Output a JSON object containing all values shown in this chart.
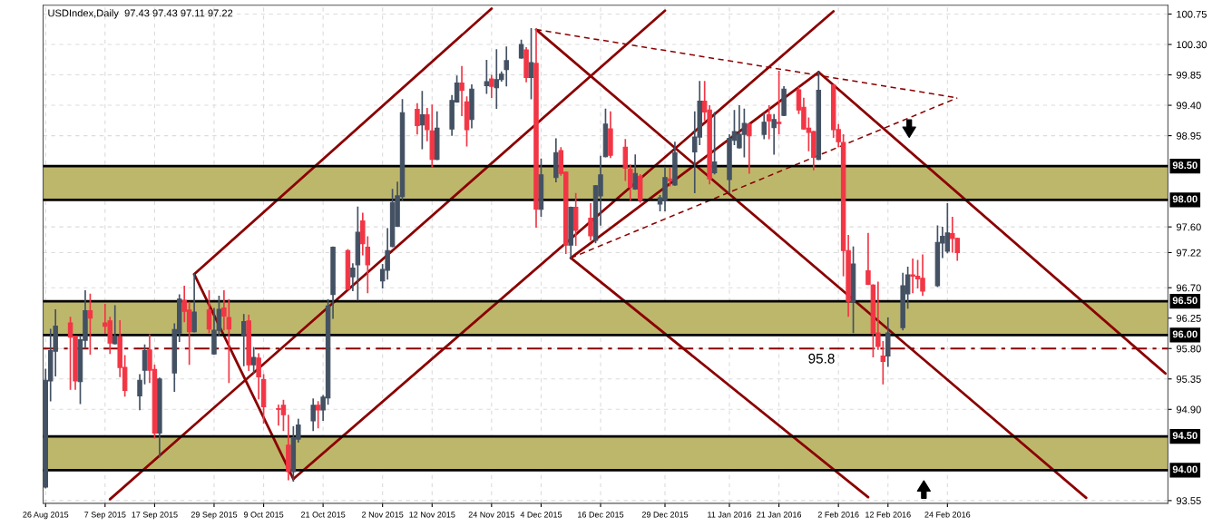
{
  "chart_data": {
    "type": "candlestick",
    "title": "USDIndex,Daily  97.43 97.43 97.11 97.22",
    "x": [
      "2015-08-26",
      "2015-08-27",
      "2015-08-28",
      "2015-08-31",
      "2015-09-01",
      "2015-09-02",
      "2015-09-03",
      "2015-09-04",
      "2015-09-07",
      "2015-09-08",
      "2015-09-09",
      "2015-09-10",
      "2015-09-11",
      "2015-09-14",
      "2015-09-15",
      "2015-09-16",
      "2015-09-17",
      "2015-09-18",
      "2015-09-21",
      "2015-09-22",
      "2015-09-23",
      "2015-09-24",
      "2015-09-25",
      "2015-09-28",
      "2015-09-29",
      "2015-09-30",
      "2015-10-01",
      "2015-10-02",
      "2015-10-05",
      "2015-10-06",
      "2015-10-07",
      "2015-10-08",
      "2015-10-09",
      "2015-10-12",
      "2015-10-13",
      "2015-10-14",
      "2015-10-15",
      "2015-10-16",
      "2015-10-19",
      "2015-10-20",
      "2015-10-21",
      "2015-10-22",
      "2015-10-23",
      "2015-10-26",
      "2015-10-27",
      "2015-10-28",
      "2015-10-29",
      "2015-10-30",
      "2015-11-02",
      "2015-11-03",
      "2015-11-04",
      "2015-11-05",
      "2015-11-06",
      "2015-11-09",
      "2015-11-10",
      "2015-11-11",
      "2015-11-12",
      "2015-11-13",
      "2015-11-16",
      "2015-11-17",
      "2015-11-18",
      "2015-11-19",
      "2015-11-20",
      "2015-11-23",
      "2015-11-24",
      "2015-11-25",
      "2015-11-26",
      "2015-11-27",
      "2015-11-30",
      "2015-12-01",
      "2015-12-02",
      "2015-12-03",
      "2015-12-04",
      "2015-12-07",
      "2015-12-08",
      "2015-12-09",
      "2015-12-10",
      "2015-12-11",
      "2015-12-14",
      "2015-12-15",
      "2015-12-16",
      "2015-12-17",
      "2015-12-18",
      "2015-12-21",
      "2015-12-22",
      "2015-12-23",
      "2015-12-24",
      "2015-12-28",
      "2015-12-29",
      "2015-12-30",
      "2015-12-31",
      "2016-01-04",
      "2016-01-05",
      "2016-01-06",
      "2016-01-07",
      "2016-01-08",
      "2016-01-11",
      "2016-01-12",
      "2016-01-13",
      "2016-01-14",
      "2016-01-15",
      "2016-01-18",
      "2016-01-19",
      "2016-01-20",
      "2016-01-21",
      "2016-01-22",
      "2016-01-25",
      "2016-01-26",
      "2016-01-27",
      "2016-01-28",
      "2016-01-29",
      "2016-02-01",
      "2016-02-02",
      "2016-02-03",
      "2016-02-04",
      "2016-02-05",
      "2016-02-08",
      "2016-02-09",
      "2016-02-10",
      "2016-02-11",
      "2016-02-12",
      "2016-02-15",
      "2016-02-16",
      "2016-02-17",
      "2016-02-18",
      "2016-02-19",
      "2016-02-22",
      "2016-02-23",
      "2016-02-24",
      "2016-02-25",
      "2016-02-26"
    ],
    "ohlc": [
      [
        93.75,
        95.49,
        93.74,
        95.33
      ],
      [
        95.32,
        96.08,
        95.03,
        95.77
      ],
      [
        95.76,
        96.37,
        95.4,
        96.13
      ],
      [
        96.18,
        96.26,
        95.2,
        95.97
      ],
      [
        95.98,
        95.98,
        95.2,
        95.32
      ],
      [
        95.31,
        95.98,
        94.99,
        95.93
      ],
      [
        95.92,
        96.65,
        95.81,
        96.36
      ],
      [
        96.36,
        96.6,
        95.72,
        96.25
      ],
      [
        96.18,
        96.45,
        96.03,
        96.13
      ],
      [
        96.21,
        96.26,
        95.73,
        95.88
      ],
      [
        95.87,
        96.43,
        95.87,
        95.97
      ],
      [
        95.97,
        96.21,
        95.39,
        95.52
      ],
      [
        95.52,
        95.69,
        95.1,
        95.18
      ],
      [
        95.1,
        95.41,
        94.9,
        95.33
      ],
      [
        95.48,
        95.85,
        95.28,
        95.77
      ],
      [
        95.78,
        96.0,
        95.3,
        95.48
      ],
      [
        95.49,
        95.55,
        94.48,
        94.55
      ],
      [
        94.55,
        95.36,
        94.2,
        95.35
      ],
      [
        95.44,
        96.16,
        95.17,
        96.08
      ],
      [
        96.03,
        96.59,
        95.91,
        96.53
      ],
      [
        96.51,
        96.72,
        96.2,
        96.35
      ],
      [
        96.37,
        96.48,
        95.57,
        96.05
      ],
      [
        96.05,
        96.9,
        96.05,
        96.34
      ],
      [
        96.37,
        96.65,
        96.04,
        96.09
      ],
      [
        95.72,
        96.39,
        95.72,
        96.07
      ],
      [
        96.07,
        96.57,
        95.99,
        96.38
      ],
      [
        96.4,
        96.65,
        96.08,
        96.28
      ],
      [
        96.26,
        96.52,
        95.3,
        96.09
      ],
      [
        96.0,
        96.3,
        95.55,
        96.2
      ],
      [
        96.21,
        96.29,
        95.48,
        95.56
      ],
      [
        95.56,
        95.81,
        95.44,
        95.67
      ],
      [
        95.66,
        95.72,
        95.06,
        95.38
      ],
      [
        95.34,
        95.41,
        94.7,
        94.94
      ],
      [
        94.91,
        94.96,
        94.67,
        94.9
      ],
      [
        94.96,
        95.03,
        94.59,
        94.82
      ],
      [
        94.37,
        94.81,
        93.86,
        93.98
      ],
      [
        93.98,
        94.64,
        93.84,
        94.47
      ],
      [
        94.46,
        94.75,
        94.42,
        94.67
      ],
      [
        94.73,
        95.05,
        94.59,
        94.96
      ],
      [
        94.96,
        95.01,
        94.63,
        94.89
      ],
      [
        94.89,
        95.1,
        94.74,
        95.08
      ],
      [
        95.07,
        96.52,
        94.98,
        96.43
      ],
      [
        96.6,
        97.3,
        96.25,
        97.3
      ],
      [
        97.25,
        97.26,
        96.68,
        96.68
      ],
      [
        96.86,
        97.05,
        96.66,
        96.99
      ],
      [
        97.04,
        97.89,
        96.52,
        97.52
      ],
      [
        97.69,
        97.8,
        97.19,
        97.35
      ],
      [
        97.3,
        97.45,
        96.63,
        97.04
      ],
      [
        96.8,
        97.04,
        96.7,
        96.97
      ],
      [
        96.96,
        97.57,
        96.83,
        97.25
      ],
      [
        97.31,
        98.15,
        97.31,
        97.96
      ],
      [
        97.61,
        98.26,
        97.61,
        98.06
      ],
      [
        98.05,
        99.48,
        98.0,
        99.29
      ],
      [
        99.34,
        99.42,
        98.98,
        99.1
      ],
      [
        99.11,
        99.6,
        98.76,
        99.26
      ],
      [
        99.26,
        99.35,
        98.88,
        99.04
      ],
      [
        99.02,
        99.4,
        98.49,
        98.6
      ],
      [
        98.6,
        99.3,
        98.6,
        99.06
      ],
      [
        99.05,
        99.54,
        98.96,
        99.47
      ],
      [
        99.45,
        99.83,
        99.45,
        99.73
      ],
      [
        99.73,
        99.97,
        99.25,
        99.62
      ],
      [
        99.45,
        99.52,
        98.8,
        99.04
      ],
      [
        99.19,
        99.7,
        99.07,
        99.64
      ],
      [
        99.69,
        100.06,
        99.58,
        99.75
      ],
      [
        99.79,
        99.84,
        99.52,
        99.68
      ],
      [
        99.66,
        100.22,
        99.36,
        99.78
      ],
      [
        99.78,
        99.89,
        99.76,
        99.86
      ],
      [
        99.93,
        100.26,
        99.69,
        100.06
      ],
      [
        100.1,
        100.36,
        100.1,
        100.3
      ],
      [
        100.22,
        100.25,
        99.75,
        99.81
      ],
      [
        99.81,
        100.53,
        99.5,
        100.03
      ],
      [
        100.02,
        100.52,
        97.6,
        97.86
      ],
      [
        97.86,
        98.6,
        97.76,
        98.37
      ],
      [
        98.33,
        98.9,
        98.27,
        98.7
      ],
      [
        98.73,
        98.77,
        98.37,
        98.39
      ],
      [
        98.41,
        98.41,
        97.21,
        97.33
      ],
      [
        97.33,
        97.89,
        97.14,
        97.89
      ],
      [
        97.89,
        98.09,
        97.33,
        97.55
      ],
      [
        97.73,
        97.94,
        97.41,
        97.47
      ],
      [
        97.4,
        98.21,
        97.37,
        98.21
      ],
      [
        98.06,
        98.64,
        97.63,
        98.37
      ],
      [
        98.64,
        99.34,
        98.64,
        99.12
      ],
      [
        99.05,
        99.3,
        98.63,
        98.66
      ],
      [
        98.78,
        98.89,
        98.29,
        98.47
      ],
      [
        98.45,
        98.51,
        98.0,
        98.19
      ],
      [
        98.16,
        98.66,
        98.16,
        98.39
      ],
      [
        98.35,
        98.37,
        97.97,
        98.0
      ],
      [
        97.94,
        98.06,
        97.84,
        98.03
      ],
      [
        97.99,
        98.48,
        97.84,
        98.33
      ],
      [
        98.31,
        98.47,
        98.21,
        98.28
      ],
      [
        98.22,
        98.85,
        98.22,
        98.7
      ],
      [
        98.71,
        99.3,
        98.11,
        98.93
      ],
      [
        98.93,
        99.75,
        98.82,
        99.46
      ],
      [
        99.46,
        99.75,
        99.18,
        99.3
      ],
      [
        99.33,
        99.39,
        98.24,
        98.31
      ],
      [
        98.4,
        99.29,
        98.39,
        98.56
      ],
      [
        98.3,
        98.96,
        98.11,
        98.91
      ],
      [
        98.88,
        99.32,
        98.82,
        99.01
      ],
      [
        98.77,
        99.39,
        98.77,
        98.97
      ],
      [
        98.97,
        99.34,
        98.64,
        99.13
      ],
      [
        99.12,
        99.12,
        98.4,
        98.95
      ],
      [
        98.97,
        99.27,
        98.91,
        99.15
      ],
      [
        99.26,
        99.39,
        98.91,
        99.17
      ],
      [
        99.07,
        99.26,
        98.68,
        99.19
      ],
      [
        99.15,
        99.9,
        98.98,
        99.13
      ],
      [
        99.25,
        99.67,
        99.25,
        99.64
      ],
      [
        99.63,
        99.66,
        99.28,
        99.33
      ],
      [
        99.37,
        99.5,
        99.05,
        99.05
      ],
      [
        99.06,
        99.21,
        98.73,
        99.0
      ],
      [
        99.01,
        99.01,
        98.45,
        98.63
      ],
      [
        98.6,
        99.89,
        98.6,
        99.62
      ],
      [
        99.7,
        99.7,
        98.93,
        99.04
      ],
      [
        99.04,
        99.11,
        98.79,
        98.86
      ],
      [
        98.85,
        98.96,
        96.88,
        97.25
      ],
      [
        97.25,
        97.47,
        96.28,
        96.5
      ],
      [
        96.49,
        97.3,
        96.04,
        97.05
      ],
      [
        96.95,
        97.5,
        96.75,
        96.75
      ],
      [
        96.74,
        96.74,
        95.68,
        96.03
      ],
      [
        96.03,
        96.78,
        95.79,
        95.83
      ],
      [
        95.69,
        95.9,
        95.28,
        95.61
      ],
      [
        95.69,
        96.25,
        95.54,
        96.03
      ],
      [
        96.11,
        96.91,
        96.08,
        96.73
      ],
      [
        96.61,
        97.0,
        96.4,
        96.89
      ],
      [
        96.89,
        97.12,
        96.63,
        96.87
      ],
      [
        96.87,
        97.1,
        96.7,
        96.83
      ],
      [
        96.84,
        97.18,
        96.59,
        96.65
      ],
      [
        96.73,
        97.61,
        96.72,
        97.37
      ],
      [
        97.36,
        97.59,
        97.15,
        97.46
      ],
      [
        97.24,
        97.94,
        97.22,
        97.51
      ],
      [
        97.5,
        97.74,
        97.23,
        97.43
      ],
      [
        97.43,
        97.43,
        97.11,
        97.22
      ]
    ],
    "colors": [
      "#435163",
      "#435163",
      "#435163",
      "#f23645",
      "#f23645",
      "#435163",
      "#435163",
      "#f23645",
      "#f23645",
      "#f23645",
      "#435163",
      "#f23645",
      "#f23645",
      "#435163",
      "#435163",
      "#f23645",
      "#f23645",
      "#435163",
      "#435163",
      "#435163",
      "#f23645",
      "#f23645",
      "#435163",
      "#f23645",
      "#435163",
      "#435163",
      "#f23645",
      "#f23645",
      "#435163",
      "#f23645",
      "#435163",
      "#f23645",
      "#f23645",
      "#f23645",
      "#f23645",
      "#f23645",
      "#435163",
      "#435163",
      "#435163",
      "#f23645",
      "#435163",
      "#435163",
      "#435163",
      "#f23645",
      "#435163",
      "#435163",
      "#f23645",
      "#f23645",
      "#435163",
      "#435163",
      "#435163",
      "#435163",
      "#435163",
      "#f23645",
      "#435163",
      "#f23645",
      "#f23645",
      "#435163",
      "#435163",
      "#435163",
      "#f23645",
      "#f23645",
      "#435163",
      "#435163",
      "#f23645",
      "#435163",
      "#435163",
      "#435163",
      "#435163",
      "#f23645",
      "#435163",
      "#f23645",
      "#435163",
      "#435163",
      "#f23645",
      "#f23645",
      "#435163",
      "#f23645",
      "#f23645",
      "#435163",
      "#435163",
      "#435163",
      "#f23645",
      "#f23645",
      "#f23645",
      "#435163",
      "#f23645",
      "#435163",
      "#435163",
      "#f23645",
      "#435163",
      "#435163",
      "#435163",
      "#f23645",
      "#f23645",
      "#435163",
      "#435163",
      "#435163",
      "#435163",
      "#435163",
      "#f23645",
      "#435163",
      "#f23645",
      "#435163",
      "#f23645",
      "#435163",
      "#f23645",
      "#f23645",
      "#f23645",
      "#f23645",
      "#435163",
      "#f23645",
      "#f23645",
      "#f23645",
      "#f23645",
      "#435163",
      "#f23645",
      "#f23645",
      "#f23645",
      "#f23645",
      "#435163",
      "#435163",
      "#435163",
      "#f23645",
      "#f23645",
      "#f23645",
      "#435163",
      "#435163",
      "#435163",
      "#f23645",
      "#f23645"
    ],
    "series": [
      {
        "type": "line",
        "x": [
          "2015-09-08",
          "2015-12-29"
        ],
        "values": [
          93.57,
          100.8
        ],
        "color": "#8b0000",
        "line_style": "solid"
      },
      {
        "type": "line",
        "x": [
          "2015-09-25",
          "2015-11-24"
        ],
        "values": [
          96.9,
          100.83
        ],
        "color": "#8b0000",
        "line_style": "solid"
      },
      {
        "type": "line",
        "x": [
          "2015-10-15",
          "2016-02-01"
        ],
        "values": [
          93.87,
          100.79
        ],
        "color": "#8b0000",
        "line_style": "solid"
      },
      {
        "type": "line",
        "x": [
          "2015-09-25",
          "2015-10-15"
        ],
        "values": [
          96.9,
          93.87
        ],
        "color": "#8b0000",
        "line_style": "solid"
      },
      {
        "type": "line",
        "x": [
          "2015-12-03",
          "2016-03-23"
        ],
        "values": [
          100.52,
          93.59
        ],
        "color": "#8b0000",
        "line_style": "solid"
      },
      {
        "type": "line",
        "x": [
          "2015-12-10",
          "2016-02-08"
        ],
        "values": [
          97.14,
          93.6
        ],
        "color": "#8b0000",
        "line_style": "solid"
      },
      {
        "type": "line",
        "x": [
          "2016-01-29",
          "2016-04-08"
        ],
        "values": [
          99.89,
          95.43
        ],
        "color": "#8b0000",
        "line_style": "solid"
      },
      {
        "type": "line",
        "x": [
          "2015-12-10",
          "2016-01-29"
        ],
        "values": [
          97.14,
          99.89
        ],
        "color": "#8b0000",
        "line_style": "solid"
      },
      {
        "type": "line",
        "x": [
          "2015-12-03",
          "2016-02-26"
        ],
        "values": [
          100.52,
          99.51
        ],
        "color": "#8b0000",
        "line_style": "dashed"
      },
      {
        "type": "line",
        "x": [
          "2015-12-10",
          "2016-02-26"
        ],
        "values": [
          97.14,
          99.51
        ],
        "color": "#8b0000",
        "line_style": "dashed"
      }
    ],
    "xlim": [
      "2015-08-26",
      "2016-04-08"
    ],
    "xticks": [
      {
        "value": "2015-08-26",
        "label": "26 Aug 2015"
      },
      {
        "value": "2015-09-07",
        "label": "7 Sep 2015"
      },
      {
        "value": "2015-09-17",
        "label": "17 Sep 2015"
      },
      {
        "value": "2015-09-29",
        "label": "29 Sep 2015"
      },
      {
        "value": "2015-10-09",
        "label": "9 Oct 2015"
      },
      {
        "value": "2015-10-21",
        "label": "21 Oct 2015"
      },
      {
        "value": "2015-11-02",
        "label": "2 Nov 2015"
      },
      {
        "value": "2015-11-12",
        "label": "12 Nov 2015"
      },
      {
        "value": "2015-11-24",
        "label": "24 Nov 2015"
      },
      {
        "value": "2015-12-04",
        "label": "4 Dec 2015"
      },
      {
        "value": "2015-12-16",
        "label": "16 Dec 2015"
      },
      {
        "value": "2015-12-29",
        "label": "29 Dec 2015"
      },
      {
        "value": "2016-01-11",
        "label": "11 Jan 2016"
      },
      {
        "value": "2016-01-21",
        "label": "21 Jan 2016"
      },
      {
        "value": "2016-02-02",
        "label": "2 Feb 2016"
      },
      {
        "value": "2016-02-12",
        "label": "12 Feb 2016"
      },
      {
        "value": "2016-02-24",
        "label": "24 Feb 2016"
      }
    ],
    "ylim": [
      93.51,
      100.88
    ],
    "yticks": [
      100.75,
      {
        "value": 100.3,
        "label": "100.30"
      },
      99.85,
      {
        "value": 99.4,
        "label": "99.40"
      },
      98.95,
      {
        "value": 97.6,
        "label": "97.60"
      },
      {
        "value": 97.22,
        "label": "97.22"
      },
      {
        "value": 96.7,
        "label": "96.70"
      },
      96.25,
      {
        "value": 95.8,
        "label": "95.80"
      },
      95.35,
      {
        "value": 94.9,
        "label": "94.90"
      },
      93.55
    ],
    "ref_lines": [
      {
        "axis": "y",
        "value": 98.5,
        "label": "98.50",
        "color": "#000000",
        "line_style": "solid"
      },
      {
        "axis": "y",
        "value": 98.0,
        "label": "98.00",
        "color": "#000000",
        "line_style": "solid"
      },
      {
        "axis": "y",
        "value": 96.5,
        "label": "96.50",
        "color": "#000000",
        "line_style": "solid"
      },
      {
        "axis": "y",
        "value": 96.0,
        "label": "96.00",
        "color": "#000000",
        "line_style": "solid"
      },
      {
        "axis": "y",
        "value": 94.5,
        "label": "94.50",
        "color": "#000000",
        "line_style": "solid"
      },
      {
        "axis": "y",
        "value": 94.0,
        "label": "94.00",
        "color": "#000000",
        "line_style": "solid"
      },
      {
        "axis": "y",
        "value": 95.8,
        "label": "95.8",
        "color": "#8b0000",
        "line_style": "dashed"
      }
    ],
    "bands": [
      {
        "axis": "y",
        "from": 98.0,
        "to": 98.5,
        "color": "#bdb76b"
      },
      {
        "axis": "y",
        "from": 96.0,
        "to": 96.5,
        "color": "#bdb76b"
      },
      {
        "axis": "y",
        "from": 94.0,
        "to": 94.5,
        "color": "#bdb76b"
      }
    ],
    "grid": true
  }
}
